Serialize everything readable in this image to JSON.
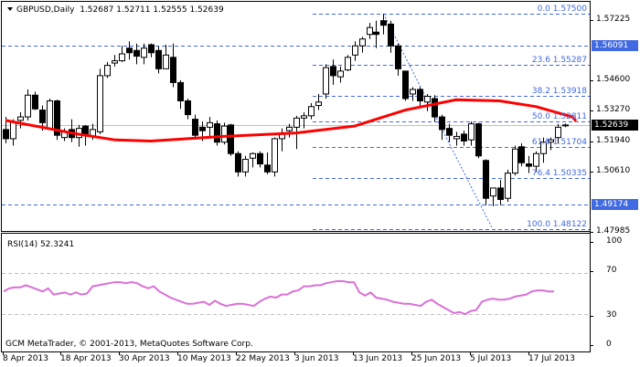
{
  "header": {
    "symbol": "GBPUSD,Daily",
    "open": "1.52687",
    "high": "1.52711",
    "low": "1.52555",
    "close": "1.52639"
  },
  "rsi": {
    "label": "RSI(14) 52.3241",
    "levels": [
      "100",
      "70",
      "30",
      "0"
    ]
  },
  "copyright": "GCM MetaTrader, © 2001-2013, MetaQuotes Software Corp.",
  "colors": {
    "background": "#FFFFFF",
    "grid_dash": "#4169E1",
    "ma_line": "#FF0000",
    "rsi_line": "#DA70D6",
    "bid_line": "#C0C0C0",
    "price_tag_blue": "#4169E1",
    "price_tag_black": "#000000"
  },
  "price_axis": {
    "ticks": [
      "1.57225",
      "1.54600",
      "1.53270",
      "1.51940",
      "1.50610",
      "1.47985"
    ],
    "current_price": "1.52639",
    "level_tags": [
      "1.56091",
      "1.49174"
    ]
  },
  "fibonacci": [
    {
      "level": "0.0",
      "price": "1.57500"
    },
    {
      "level": "23.6",
      "price": "1.55287"
    },
    {
      "level": "38.2",
      "price": "1.53918"
    },
    {
      "level": "50.0",
      "price": "1.52811"
    },
    {
      "level": "61.8",
      "price": "1.51704"
    },
    {
      "level": "76.4",
      "price": "1.50335"
    },
    {
      "level": "100.0",
      "price": "1.48122"
    }
  ],
  "time_axis": [
    "8 Apr 2013",
    "18 Apr 2013",
    "30 Apr 2013",
    "10 May 2013",
    "22 May 2013",
    "3 Jun 2013",
    "13 Jun 2013",
    "25 Jun 2013",
    "5 Jul 2013",
    "17 Jul 2013"
  ],
  "chart_data": [
    {
      "type": "candlestick",
      "title": "GBPUSD,Daily",
      "ylim": [
        1.47985,
        1.57225
      ],
      "yticks": [
        1.57225,
        1.546,
        1.5327,
        1.5194,
        1.5061,
        1.47985
      ],
      "xticks": [
        "8 Apr 2013",
        "18 Apr 2013",
        "30 Apr 2013",
        "10 May 2013",
        "22 May 2013",
        "3 Jun 2013",
        "13 Jun 2013",
        "25 Jun 2013",
        "5 Jul 2013",
        "17 Jul 2013"
      ],
      "last": {
        "open": 1.52687,
        "high": 1.52711,
        "low": 1.52555,
        "close": 1.52639
      },
      "candles": [
        [
          1.5245,
          1.53,
          1.5185,
          1.5205
        ],
        [
          1.5205,
          1.529,
          1.5175,
          1.528
        ],
        [
          1.5285,
          1.532,
          1.525,
          1.53
        ],
        [
          1.53,
          1.542,
          1.5285,
          1.5395
        ],
        [
          1.5395,
          1.541,
          1.533,
          1.5335
        ],
        [
          1.533,
          1.535,
          1.524,
          1.5275
        ],
        [
          1.525,
          1.538,
          1.525,
          1.537
        ],
        [
          1.537,
          1.5375,
          1.52,
          1.522
        ],
        [
          1.521,
          1.525,
          1.5195,
          1.5235
        ],
        [
          1.5245,
          1.529,
          1.519,
          1.521
        ],
        [
          1.521,
          1.5265,
          1.517,
          1.525
        ],
        [
          1.526,
          1.5265,
          1.5175,
          1.522
        ],
        [
          1.5215,
          1.527,
          1.52,
          1.5245
        ],
        [
          1.5235,
          1.551,
          1.5225,
          1.548
        ],
        [
          1.548,
          1.554,
          1.547,
          1.5525
        ],
        [
          1.5535,
          1.557,
          1.552,
          1.5545
        ],
        [
          1.5545,
          1.561,
          1.554,
          1.5575
        ],
        [
          1.56,
          1.563,
          1.555,
          1.558
        ],
        [
          1.559,
          1.562,
          1.553,
          1.5565
        ],
        [
          1.556,
          1.562,
          1.553,
          1.56
        ],
        [
          1.5615,
          1.562,
          1.556,
          1.558
        ],
        [
          1.559,
          1.561,
          1.549,
          1.551
        ],
        [
          1.551,
          1.5615,
          1.552,
          1.557
        ],
        [
          1.556,
          1.562,
          1.543,
          1.545
        ],
        [
          1.545,
          1.546,
          1.5335,
          1.537
        ],
        [
          1.537,
          1.538,
          1.529,
          1.531
        ],
        [
          1.529,
          1.531,
          1.521,
          1.522
        ],
        [
          1.5255,
          1.528,
          1.5195,
          1.524
        ],
        [
          1.5255,
          1.53,
          1.521,
          1.5275
        ],
        [
          1.527,
          1.5285,
          1.5175,
          1.519
        ],
        [
          1.519,
          1.5275,
          1.518,
          1.526
        ],
        [
          1.5265,
          1.527,
          1.513,
          1.514
        ],
        [
          1.514,
          1.515,
          1.504,
          1.506
        ],
        [
          1.506,
          1.513,
          1.504,
          1.5115
        ],
        [
          1.512,
          1.5145,
          1.508,
          1.514
        ],
        [
          1.514,
          1.515,
          1.508,
          1.5095
        ],
        [
          1.509,
          1.5145,
          1.505,
          1.506
        ],
        [
          1.506,
          1.521,
          1.504,
          1.5205
        ],
        [
          1.5205,
          1.525,
          1.515,
          1.5225
        ],
        [
          1.524,
          1.527,
          1.521,
          1.5255
        ],
        [
          1.5255,
          1.5305,
          1.516,
          1.5295
        ],
        [
          1.5295,
          1.532,
          1.525,
          1.5305
        ],
        [
          1.5305,
          1.536,
          1.529,
          1.5345
        ],
        [
          1.535,
          1.54,
          1.533,
          1.5365
        ],
        [
          1.54,
          1.553,
          1.538,
          1.5515
        ],
        [
          1.552,
          1.555,
          1.544,
          1.548
        ],
        [
          1.5475,
          1.552,
          1.545,
          1.55
        ],
        [
          1.5505,
          1.557,
          1.55,
          1.556
        ],
        [
          1.557,
          1.563,
          1.5545,
          1.561
        ],
        [
          1.561,
          1.565,
          1.558,
          1.564
        ],
        [
          1.566,
          1.571,
          1.564,
          1.569
        ],
        [
          1.567,
          1.572,
          1.56,
          1.566
        ],
        [
          1.572,
          1.575,
          1.566,
          1.57
        ],
        [
          1.5705,
          1.572,
          1.558,
          1.561
        ],
        [
          1.561,
          1.562,
          1.548,
          1.551
        ],
        [
          1.55,
          1.55,
          1.537,
          1.538
        ],
        [
          1.54,
          1.543,
          1.537,
          1.542
        ],
        [
          1.542,
          1.543,
          1.534,
          1.537
        ],
        [
          1.5365,
          1.54,
          1.5325,
          1.539
        ],
        [
          1.538,
          1.5395,
          1.528,
          1.53
        ],
        [
          1.53,
          1.531,
          1.52,
          1.5245
        ],
        [
          1.525,
          1.527,
          1.519,
          1.522
        ],
        [
          1.5205,
          1.5235,
          1.5175,
          1.5215
        ],
        [
          1.5225,
          1.524,
          1.5175,
          1.5195
        ],
        [
          1.52,
          1.528,
          1.5175,
          1.527
        ],
        [
          1.527,
          1.5275,
          1.512,
          1.513
        ],
        [
          1.511,
          1.5115,
          1.4915,
          1.4945
        ],
        [
          1.4955,
          1.499,
          1.491,
          1.499
        ],
        [
          1.499,
          1.5025,
          1.4915,
          1.494
        ],
        [
          1.4945,
          1.507,
          1.493,
          1.5055
        ],
        [
          1.5055,
          1.5175,
          1.5045,
          1.516
        ],
        [
          1.517,
          1.5185,
          1.5085,
          1.51
        ],
        [
          1.5095,
          1.513,
          1.5055,
          1.5085
        ],
        [
          1.5085,
          1.515,
          1.506,
          1.514
        ],
        [
          1.514,
          1.521,
          1.51,
          1.519
        ],
        [
          1.519,
          1.521,
          1.5155,
          1.52
        ],
        [
          1.521,
          1.527,
          1.5185,
          1.5255
        ],
        [
          1.5265,
          1.5271,
          1.5255,
          1.5264
        ]
      ],
      "moving_average": {
        "color": "#FF0000",
        "points": [
          [
            0,
            1.5285
          ],
          [
            10,
            1.5225
          ],
          [
            15,
            1.52
          ],
          [
            20,
            1.5195
          ],
          [
            30,
            1.5215
          ],
          [
            40,
            1.523
          ],
          [
            48,
            1.526
          ],
          [
            55,
            1.533
          ],
          [
            62,
            1.5375
          ],
          [
            68,
            1.537
          ],
          [
            73,
            1.5345
          ],
          [
            78,
            1.53
          ],
          [
            78.5,
            1.5282
          ]
        ]
      },
      "fib_levels": [
        {
          "level": 0.0,
          "price": 1.575
        },
        {
          "level": 23.6,
          "price": 1.55287
        },
        {
          "level": 38.2,
          "price": 1.53918
        },
        {
          "level": 50.0,
          "price": 1.52811
        },
        {
          "level": 61.8,
          "price": 1.51704
        },
        {
          "level": 76.4,
          "price": 1.50335
        },
        {
          "level": 100.0,
          "price": 1.48122
        }
      ],
      "horizontal_lines": [
        1.56091,
        1.49174
      ],
      "current_price": 1.52639
    },
    {
      "type": "line",
      "title": "RSI(14) 52.3241",
      "ylim": [
        0,
        100
      ],
      "yticks": [
        0,
        30,
        70,
        100
      ],
      "levels": [
        30,
        70
      ],
      "color": "#DA70D6",
      "values": [
        52,
        55,
        56,
        56,
        58,
        56,
        54,
        52,
        55,
        49,
        50,
        51,
        49,
        51,
        49,
        50,
        57,
        58,
        59,
        60,
        61,
        61,
        60,
        61,
        60,
        57,
        55,
        57,
        52,
        49,
        46,
        44,
        42,
        40,
        40,
        41,
        42,
        39,
        43,
        40,
        38,
        39,
        40,
        40,
        39,
        38,
        42,
        45,
        47,
        46,
        49,
        49,
        52,
        53,
        57,
        57,
        58,
        58,
        60,
        61,
        62,
        62,
        61,
        61,
        51,
        48,
        51,
        46,
        45,
        44,
        42,
        41,
        40,
        40,
        39,
        38,
        42,
        44,
        40,
        37,
        34,
        31,
        32,
        30,
        33,
        34,
        42,
        44,
        45,
        44,
        44,
        45,
        47,
        48,
        49,
        52,
        53,
        53,
        52,
        52
      ]
    }
  ]
}
